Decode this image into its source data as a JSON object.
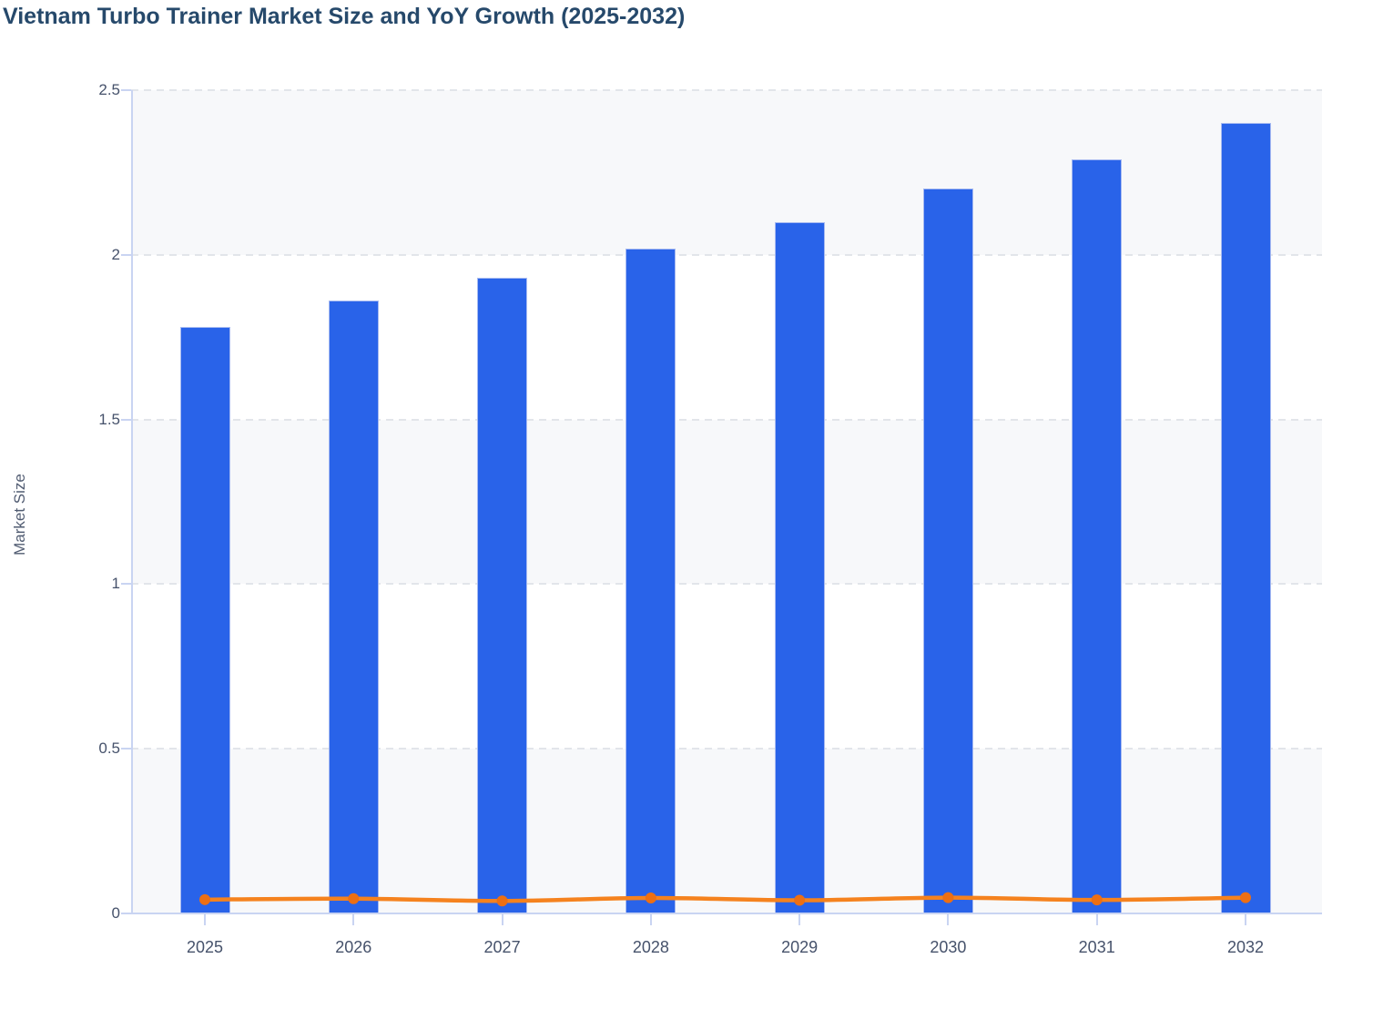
{
  "title": "Vietnam Turbo Trainer Market Size and YoY Growth (2025-2032)",
  "chart_data": {
    "type": "bar",
    "title": "Vietnam Turbo Trainer Market Size and YoY Growth (2025-2032)",
    "categories": [
      "2025",
      "2026",
      "2027",
      "2028",
      "2029",
      "2030",
      "2031",
      "2032"
    ],
    "series": [
      {
        "name": "Market Size",
        "type": "bar",
        "values": [
          1.78,
          1.86,
          1.93,
          2.02,
          2.1,
          2.2,
          2.29,
          2.4
        ],
        "color": "#2963e9",
        "border_color": "#a7baf1"
      },
      {
        "name": "YoY Growth",
        "type": "line",
        "values": [
          0.042,
          0.045,
          0.038,
          0.047,
          0.04,
          0.048,
          0.041,
          0.048
        ],
        "color": "#f5821e",
        "marker_color": "#ed6f13"
      }
    ],
    "xlabel": "",
    "ylabel": "Market Size",
    "ylim": [
      0,
      2.5
    ],
    "yticks": [
      {
        "value": 0,
        "label": "0"
      },
      {
        "value": 0.5,
        "label": "0.5"
      },
      {
        "value": 1,
        "label": "1"
      },
      {
        "value": 1.5,
        "label": "1.5"
      },
      {
        "value": 2,
        "label": "2"
      },
      {
        "value": 2.5,
        "label": "2.5"
      }
    ],
    "grid": "horizontal-dashed",
    "legend": "none",
    "band_fill": "#f7f8fa",
    "grid_color": "#e2e5ea",
    "axis_color": "#c9d4f2",
    "tick_label_color": "#46526b",
    "title_color": "#26496b"
  }
}
